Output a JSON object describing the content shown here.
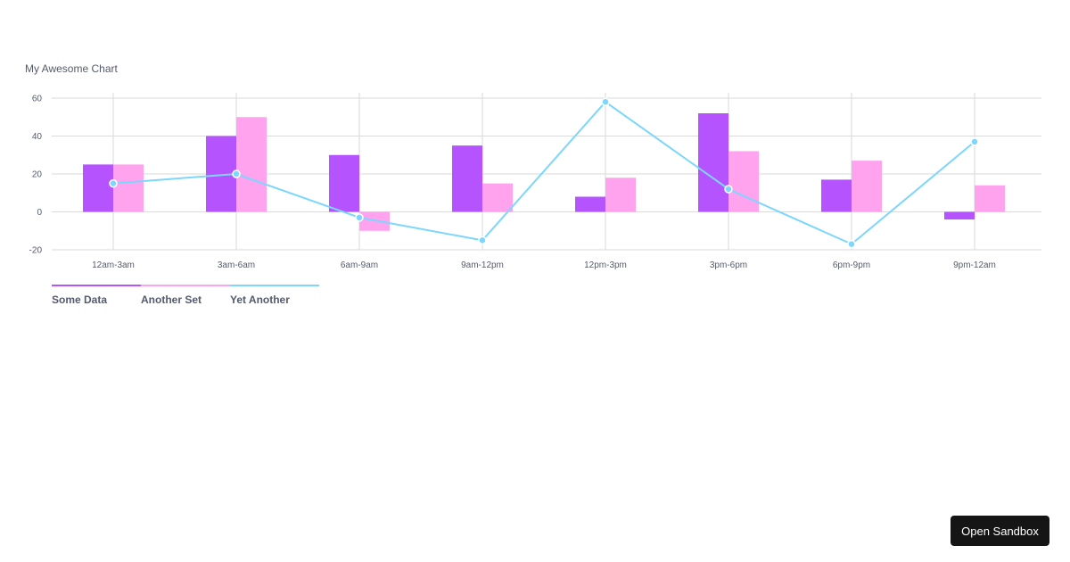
{
  "chart_data": {
    "type": "bar",
    "title": "My Awesome Chart",
    "categories": [
      "12am-3am",
      "3am-6am",
      "6am-9am",
      "9am-12pm",
      "12pm-3pm",
      "3pm-6pm",
      "6pm-9pm",
      "9pm-12am"
    ],
    "series": [
      {
        "name": "Some Data",
        "type": "bar",
        "color": "#b554ff",
        "values": [
          25,
          40,
          30,
          35,
          8,
          52,
          17,
          -4
        ]
      },
      {
        "name": "Another Set",
        "type": "bar",
        "color": "#ffa3ef",
        "values": [
          25,
          50,
          -10,
          15,
          18,
          32,
          27,
          14
        ]
      },
      {
        "name": "Yet Another",
        "type": "line",
        "color": "#7cd6fd",
        "values": [
          15,
          20,
          -3,
          -15,
          58,
          12,
          -17,
          37
        ]
      }
    ],
    "yticks": [
      60,
      40,
      20,
      0,
      -20
    ],
    "ylim": [
      -20,
      60
    ],
    "grid": true,
    "legend_position": "bottom-left"
  },
  "actions": {
    "open_sandbox_label": "Open Sandbox"
  }
}
